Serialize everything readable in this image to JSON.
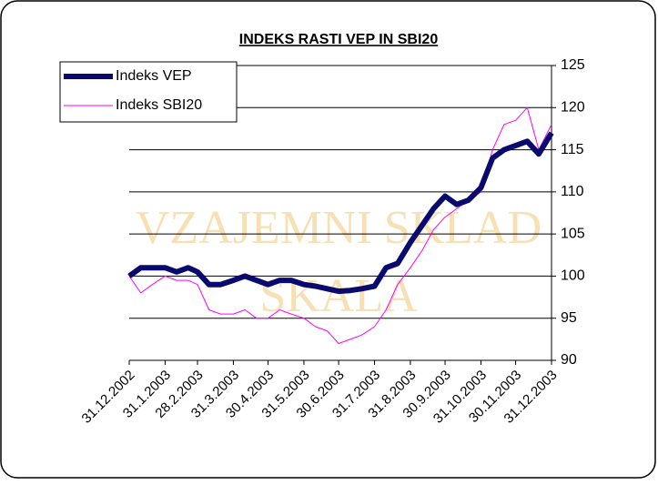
{
  "chart_data": {
    "type": "line",
    "title": "INDEKS RASTI VEP IN SBI20",
    "annotations": [
      "VZAJEMNI SKLAD",
      "SKALA"
    ],
    "x": [
      "31.12.2002",
      "10.1.2003",
      "20.1.2003",
      "31.1.2003",
      "10.2.2003",
      "20.2.2003",
      "28.2.2003",
      "10.3.2003",
      "20.3.2003",
      "31.3.2003",
      "10.4.2003",
      "20.4.2003",
      "30.4.2003",
      "10.5.2003",
      "20.5.2003",
      "31.5.2003",
      "10.6.2003",
      "20.6.2003",
      "30.6.2003",
      "10.7.2003",
      "20.7.2003",
      "31.7.2003",
      "10.8.2003",
      "20.8.2003",
      "31.8.2003",
      "10.9.2003",
      "20.9.2003",
      "30.9.2003",
      "10.10.2003",
      "20.10.2003",
      "31.10.2003",
      "10.11.2003",
      "20.11.2003",
      "30.11.2003",
      "10.12.2003",
      "20.12.2003",
      "31.12.2003"
    ],
    "series": [
      {
        "name": "Indeks VEP",
        "color": "#0a0a6e",
        "values": [
          100,
          101,
          101,
          101,
          100.5,
          101,
          100.5,
          99,
          99,
          99.5,
          100,
          99.5,
          99,
          99.5,
          99.5,
          99,
          98.8,
          98.5,
          98.2,
          98.3,
          98.5,
          98.8,
          101,
          101.5,
          104,
          106,
          108,
          109.5,
          108.5,
          109,
          110.5,
          114,
          115,
          115.5,
          116,
          114.5,
          117
        ]
      },
      {
        "name": "Indeks SBI20",
        "color": "#ff00ff",
        "values": [
          100,
          98,
          99,
          100,
          99.5,
          99.5,
          99,
          96,
          95.5,
          95.5,
          96,
          95,
          95,
          96,
          95.5,
          95,
          94,
          93.5,
          92,
          92.5,
          93,
          94,
          96,
          99,
          101,
          103,
          105.5,
          107,
          108,
          109,
          110,
          115,
          118,
          118.5,
          120,
          115,
          118
        ]
      }
    ],
    "xlim": [
      "31.12.2002",
      "31.12.2003"
    ],
    "xticks": [
      "31.12.2002",
      "31.1.2003",
      "28.2.2003",
      "31.3.2003",
      "30.4.2003",
      "31.5.2003",
      "30.6.2003",
      "31.7.2003",
      "31.8.2003",
      "30.9.2003",
      "31.10.2003",
      "30.11.2003",
      "31.12.2003"
    ],
    "ylim": [
      90,
      125
    ],
    "yticks": [
      90,
      95,
      100,
      105,
      110,
      115,
      120,
      125
    ],
    "grid": true,
    "legend": "top-left"
  }
}
